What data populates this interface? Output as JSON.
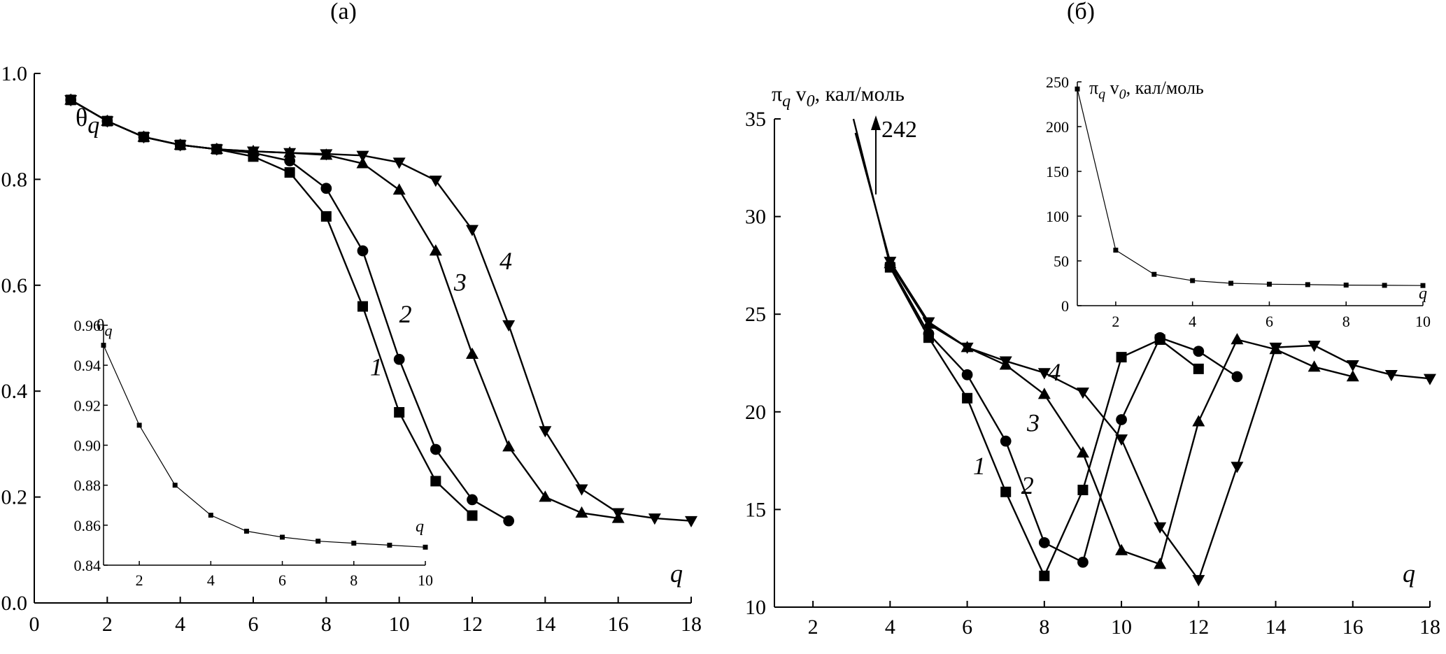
{
  "panels": [
    {
      "label": "(а)",
      "ylabel_main": "θ",
      "ylabel_sub": "q",
      "xlabel": "q",
      "chart_data": {
        "type": "line",
        "xlim": [
          0,
          18
        ],
        "ylim": [
          0,
          1
        ],
        "xticks": [
          0,
          2,
          4,
          6,
          8,
          10,
          12,
          14,
          16,
          18
        ],
        "yticks": [
          0,
          0.2,
          0.4,
          0.6,
          0.8,
          1.0
        ],
        "ytick_labels": [
          "0.0",
          "0.2",
          "0.4",
          "0.6",
          "0.8",
          "1.0"
        ],
        "grid": false,
        "series": [
          {
            "name": "1",
            "marker": "square",
            "x": [
              1,
              2,
              3,
              4,
              5,
              6,
              7,
              8,
              9,
              10,
              11,
              12
            ],
            "y": [
              0.95,
              0.91,
              0.88,
              0.865,
              0.857,
              0.843,
              0.813,
              0.73,
              0.56,
              0.36,
              0.23,
              0.165
            ]
          },
          {
            "name": "2",
            "marker": "circle",
            "x": [
              1,
              2,
              3,
              4,
              5,
              6,
              7,
              8,
              9,
              10,
              11,
              12,
              13
            ],
            "y": [
              0.95,
              0.91,
              0.88,
              0.865,
              0.857,
              0.85,
              0.835,
              0.783,
              0.665,
              0.46,
              0.29,
              0.195,
              0.155
            ]
          },
          {
            "name": "3",
            "marker": "triangle-up",
            "x": [
              1,
              2,
              3,
              4,
              5,
              6,
              7,
              8,
              9,
              10,
              11,
              12,
              13,
              14,
              15,
              16
            ],
            "y": [
              0.95,
              0.91,
              0.88,
              0.865,
              0.857,
              0.853,
              0.85,
              0.846,
              0.83,
              0.78,
              0.665,
              0.47,
              0.295,
              0.2,
              0.17,
              0.16
            ]
          },
          {
            "name": "4",
            "marker": "triangle-down",
            "x": [
              1,
              2,
              3,
              4,
              5,
              6,
              7,
              8,
              9,
              10,
              11,
              12,
              13,
              14,
              15,
              16,
              17,
              18
            ],
            "y": [
              0.95,
              0.91,
              0.88,
              0.865,
              0.857,
              0.853,
              0.85,
              0.848,
              0.845,
              0.832,
              0.798,
              0.705,
              0.525,
              0.325,
              0.215,
              0.17,
              0.16,
              0.155
            ]
          }
        ],
        "curve_labels": [
          {
            "text": "1",
            "x": 9.2,
            "y": 0.43
          },
          {
            "text": "2",
            "x": 10.0,
            "y": 0.53
          },
          {
            "text": "3",
            "x": 11.5,
            "y": 0.59
          },
          {
            "text": "4",
            "x": 12.75,
            "y": 0.63
          }
        ]
      },
      "inset": {
        "ylabel_main": "θ",
        "ylabel_sub": "q",
        "xlabel": "q",
        "chart_data": {
          "type": "line",
          "xlim": [
            1,
            10
          ],
          "ylim": [
            0.84,
            0.96
          ],
          "xticks": [
            2,
            4,
            6,
            8,
            10
          ],
          "yticks": [
            0.84,
            0.86,
            0.88,
            0.9,
            0.92,
            0.94,
            0.96
          ],
          "ytick_labels": [
            "0.84",
            "0.86",
            "0.88",
            "0.90",
            "0.92",
            "0.94",
            "0.96"
          ],
          "series": [
            {
              "name": "",
              "marker": "small-square",
              "x": [
                1,
                2,
                3,
                4,
                5,
                6,
                7,
                8,
                9,
                10
              ],
              "y": [
                0.95,
                0.91,
                0.88,
                0.865,
                0.857,
                0.854,
                0.852,
                0.851,
                0.85,
                0.849
              ]
            }
          ]
        }
      }
    },
    {
      "label": "(б)",
      "ylabel_main": "π",
      "ylabel_sub": "q",
      "ylabel_v": " v",
      "ylabel_v_sub": "0",
      "ylabel_unit": ", кал/моль",
      "xlabel": "q",
      "arrow_label": "242",
      "chart_data": {
        "type": "line",
        "xlim": [
          1,
          18
        ],
        "ylim": [
          10,
          35
        ],
        "xticks": [
          2,
          4,
          6,
          8,
          10,
          12,
          14,
          16,
          18
        ],
        "yticks": [
          10,
          15,
          20,
          25,
          30,
          35
        ],
        "ytick_labels": [
          "10",
          "15",
          "20",
          "25",
          "30",
          "35"
        ],
        "grid": false,
        "series": [
          {
            "name": "1",
            "marker": "square",
            "x": [
              4,
              5,
              6,
              7,
              8,
              9,
              10,
              11,
              12
            ],
            "y": [
              27.4,
              23.8,
              20.7,
              15.9,
              11.6,
              16.0,
              22.8,
              23.7,
              22.2
            ]
          },
          {
            "name": "2",
            "marker": "circle",
            "x": [
              4,
              5,
              6,
              7,
              8,
              9,
              10,
              11,
              12,
              13
            ],
            "y": [
              27.5,
              24.0,
              21.9,
              18.5,
              13.3,
              12.3,
              19.6,
              23.8,
              23.1,
              21.8
            ]
          },
          {
            "name": "3",
            "marker": "triangle-up",
            "x": [
              4,
              5,
              6,
              7,
              8,
              9,
              10,
              11,
              12,
              13,
              14,
              15,
              16
            ],
            "y": [
              27.6,
              24.5,
              23.3,
              22.4,
              20.9,
              17.9,
              12.9,
              12.2,
              19.5,
              23.7,
              23.2,
              22.3,
              21.8
            ]
          },
          {
            "name": "4",
            "marker": "triangle-down",
            "x": [
              4,
              5,
              6,
              7,
              8,
              9,
              10,
              11,
              12,
              13,
              14,
              15,
              16,
              17,
              18
            ],
            "y": [
              27.7,
              24.6,
              23.3,
              22.6,
              22.0,
              21.0,
              18.6,
              14.1,
              11.4,
              17.2,
              23.3,
              23.4,
              22.4,
              21.9,
              21.7
            ]
          }
        ],
        "curve_labels": [
          {
            "text": "1",
            "x": 6.15,
            "y": 16.8
          },
          {
            "text": "2",
            "x": 7.4,
            "y": 15.8
          },
          {
            "text": "3",
            "x": 7.55,
            "y": 19.0
          },
          {
            "text": "4",
            "x": 8.1,
            "y": 21.6
          }
        ]
      },
      "inset": {
        "ylabel_main": "π",
        "ylabel_sub": "q",
        "ylabel_v": " v",
        "ylabel_v_sub": "0",
        "ylabel_unit": ", кал/моль",
        "xlabel": "q",
        "chart_data": {
          "type": "line",
          "xlim": [
            1,
            10
          ],
          "ylim": [
            0,
            250
          ],
          "xticks": [
            2,
            4,
            6,
            8,
            10
          ],
          "yticks": [
            0,
            50,
            100,
            150,
            200,
            250
          ],
          "ytick_labels": [
            "0",
            "50",
            "100",
            "150",
            "200",
            "250"
          ],
          "series": [
            {
              "name": "",
              "marker": "small-square",
              "x": [
                1,
                2,
                3,
                4,
                5,
                6,
                7,
                8,
                9,
                10
              ],
              "y": [
                242,
                62,
                35,
                28,
                25,
                24,
                23.5,
                23,
                22.7,
                22.5
              ]
            }
          ]
        }
      }
    }
  ]
}
